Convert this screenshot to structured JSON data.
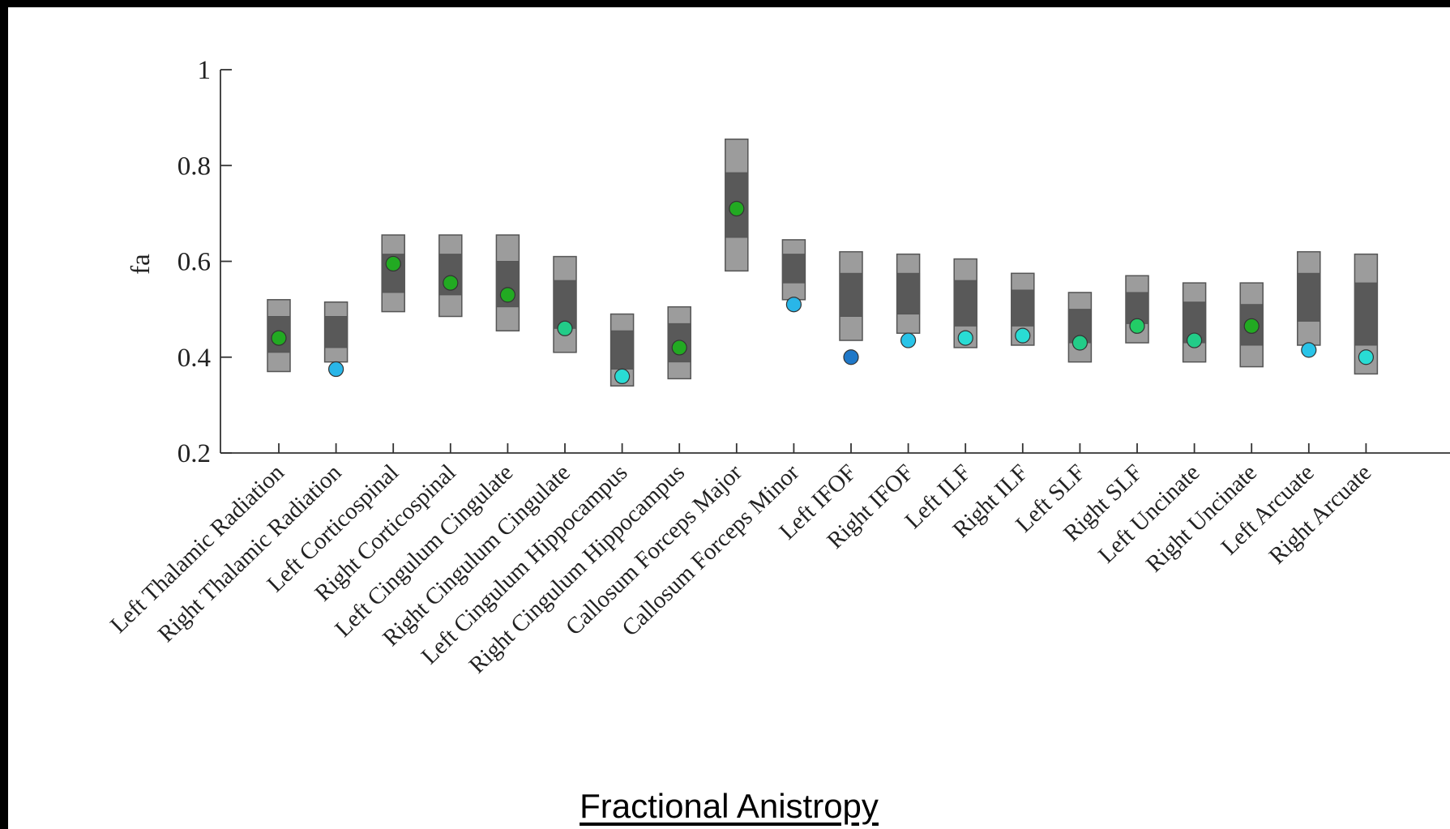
{
  "caption": "Fractional Anistropy",
  "chart_data": {
    "type": "box",
    "ylabel": "fa",
    "ylim": [
      0.2,
      1.0
    ],
    "yticks": [
      "0.2",
      "0.4",
      "0.6",
      "0.8",
      "1"
    ],
    "categories": [
      "Left Thalamic Radiation",
      "Right Thalamic Radiation",
      "Left Corticospinal",
      "Right Corticospinal",
      "Left Cingulum Cingulate",
      "Right Cingulum Cingulate",
      "Left Cingulum Hippocampus",
      "Right Cingulum Hippocampus",
      "Callosum Forceps Major",
      "Callosum Forceps Minor",
      "Left IFOF",
      "Right IFOF",
      "Left ILF",
      "Right ILF",
      "Left SLF",
      "Right SLF",
      "Left Uncinate",
      "Right Uncinate",
      "Left Arcuate",
      "Right Arcuate"
    ],
    "outer_ranges": [
      [
        0.37,
        0.52
      ],
      [
        0.39,
        0.515
      ],
      [
        0.495,
        0.655
      ],
      [
        0.485,
        0.655
      ],
      [
        0.455,
        0.655
      ],
      [
        0.41,
        0.61
      ],
      [
        0.34,
        0.49
      ],
      [
        0.355,
        0.505
      ],
      [
        0.58,
        0.855
      ],
      [
        0.52,
        0.645
      ],
      [
        0.435,
        0.62
      ],
      [
        0.45,
        0.615
      ],
      [
        0.42,
        0.605
      ],
      [
        0.425,
        0.575
      ],
      [
        0.39,
        0.535
      ],
      [
        0.43,
        0.57
      ],
      [
        0.39,
        0.555
      ],
      [
        0.38,
        0.555
      ],
      [
        0.425,
        0.62
      ],
      [
        0.365,
        0.615
      ]
    ],
    "inner_ranges": [
      [
        0.41,
        0.485
      ],
      [
        0.42,
        0.485
      ],
      [
        0.535,
        0.615
      ],
      [
        0.53,
        0.615
      ],
      [
        0.505,
        0.6
      ],
      [
        0.46,
        0.56
      ],
      [
        0.375,
        0.455
      ],
      [
        0.39,
        0.47
      ],
      [
        0.65,
        0.785
      ],
      [
        0.555,
        0.615
      ],
      [
        0.485,
        0.575
      ],
      [
        0.49,
        0.575
      ],
      [
        0.465,
        0.56
      ],
      [
        0.465,
        0.54
      ],
      [
        0.43,
        0.5
      ],
      [
        0.47,
        0.535
      ],
      [
        0.43,
        0.515
      ],
      [
        0.425,
        0.51
      ],
      [
        0.475,
        0.575
      ],
      [
        0.425,
        0.555
      ]
    ],
    "points": [
      0.44,
      0.375,
      0.595,
      0.555,
      0.53,
      0.46,
      0.36,
      0.42,
      0.71,
      0.51,
      0.4,
      0.435,
      0.44,
      0.445,
      0.43,
      0.465,
      0.435,
      0.465,
      0.415,
      0.4
    ],
    "point_colors": [
      "#22aa22",
      "#29b6e8",
      "#22aa22",
      "#22aa22",
      "#22aa22",
      "#22cc88",
      "#29dcd4",
      "#22aa22",
      "#22aa22",
      "#29b6e8",
      "#1f78c8",
      "#29c4e8",
      "#29dcd4",
      "#29dcd4",
      "#22cc88",
      "#22cc66",
      "#22cc88",
      "#22aa22",
      "#29c4e8",
      "#29dcd4"
    ],
    "colors": {
      "outer": "#9c9c9c",
      "inner": "#595959",
      "box_edge": "#555555",
      "axis": "#333333",
      "marker_edge": "#333333"
    },
    "grid": false
  }
}
